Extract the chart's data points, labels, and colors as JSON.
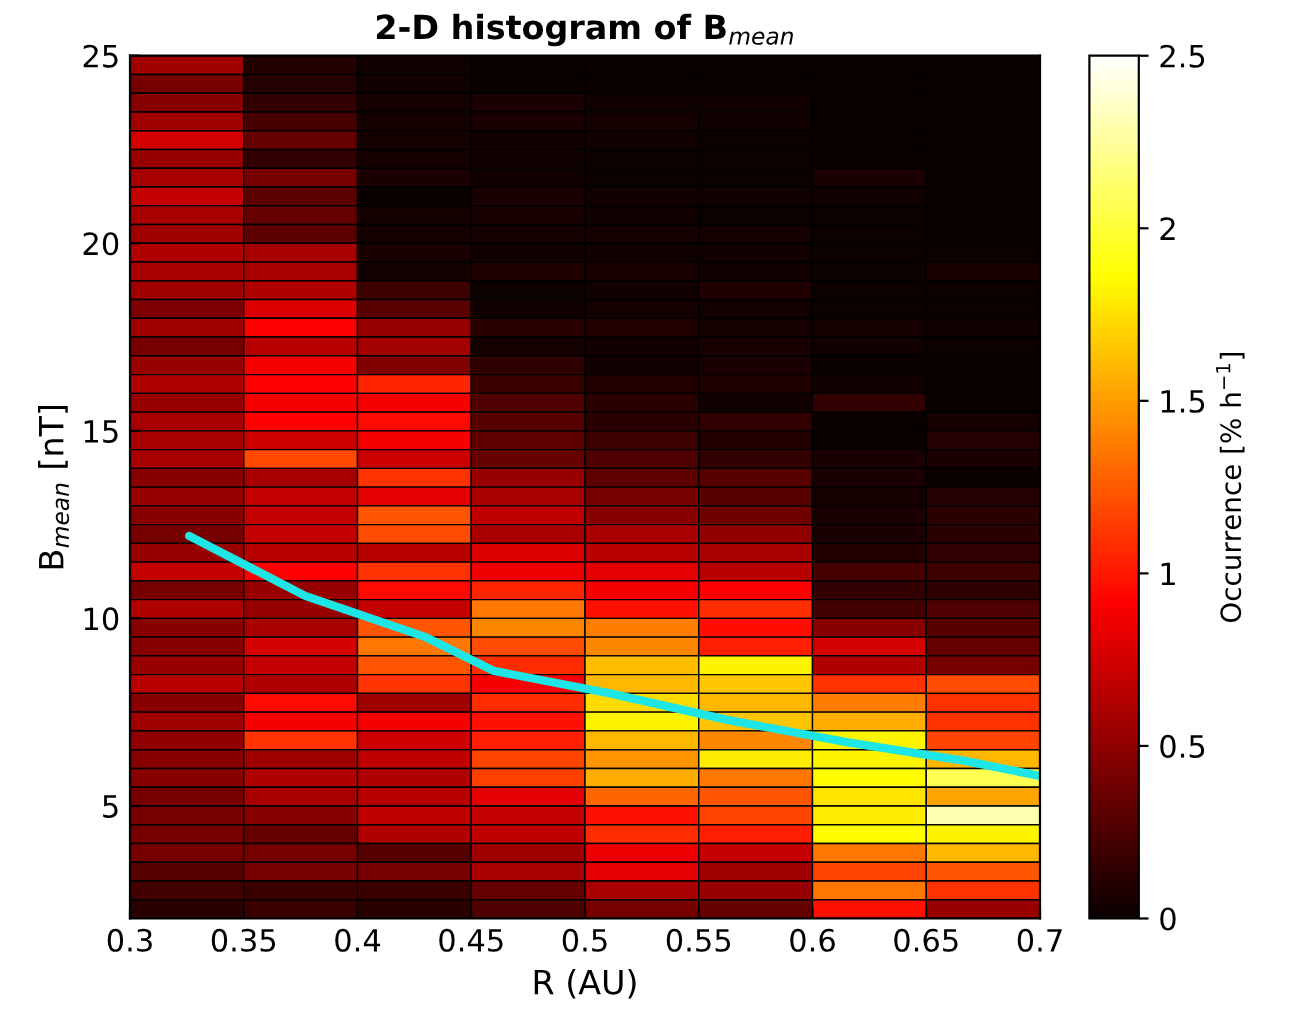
{
  "chart_data": {
    "type": "heatmap",
    "title": "2-D histogram of B$_{mean}$",
    "xlabel": "R (AU)",
    "ylabel": "B$_{mean}$ [nT]",
    "clabel": "Occurrence [% h$^{−1}$]",
    "cells": [
      [
        0.56,
        0.09,
        0.02,
        0,
        0,
        0,
        0,
        0
      ],
      [
        0.41,
        0.1,
        0.02,
        0,
        0,
        0,
        0,
        0
      ],
      [
        0.47,
        0.15,
        0.04,
        0.06,
        0.02,
        0.02,
        0,
        0
      ],
      [
        0.56,
        0.23,
        0.04,
        0.06,
        0.04,
        0.02,
        0,
        0
      ],
      [
        0.75,
        0.35,
        0.04,
        0.02,
        0.02,
        0.01,
        0,
        0
      ],
      [
        0.53,
        0.15,
        0.04,
        0.02,
        0.01,
        0.01,
        0,
        0
      ],
      [
        0.59,
        0.41,
        0.06,
        0.02,
        0.01,
        0.01,
        0.06,
        0
      ],
      [
        0.7,
        0.31,
        0,
        0.06,
        0.02,
        0.02,
        0.02,
        0
      ],
      [
        0.59,
        0.35,
        0.04,
        0.05,
        0.02,
        0.01,
        0.01,
        0
      ],
      [
        0.56,
        0.31,
        0.04,
        0.04,
        0.04,
        0.04,
        0.01,
        0
      ],
      [
        0.62,
        0.59,
        0.06,
        0.02,
        0.02,
        0.02,
        0.01,
        0.01
      ],
      [
        0.59,
        0.59,
        0.03,
        0.08,
        0.05,
        0.02,
        0.01,
        0.06
      ],
      [
        0.56,
        0.62,
        0.2,
        0.01,
        0.02,
        0.08,
        0.01,
        0.01
      ],
      [
        0.43,
        0.79,
        0.3,
        0.02,
        0.04,
        0.03,
        0.01,
        0.01
      ],
      [
        0.56,
        0.91,
        0.53,
        0.12,
        0.09,
        0.04,
        0.04,
        0.02
      ],
      [
        0.41,
        0.65,
        0.57,
        0.04,
        0.02,
        0.05,
        0.02,
        0.01
      ],
      [
        0.53,
        0.88,
        0.44,
        0.14,
        0.02,
        0.06,
        0,
        0
      ],
      [
        0.62,
        0.91,
        1.05,
        0.18,
        0.09,
        0.08,
        0.02,
        0
      ],
      [
        0.53,
        0.88,
        0.88,
        0.26,
        0.12,
        0.02,
        0.15,
        0
      ],
      [
        0.59,
        0.91,
        0.95,
        0.29,
        0.12,
        0.15,
        0,
        0.04
      ],
      [
        0.59,
        0.73,
        0.88,
        0.32,
        0.2,
        0.09,
        0,
        0.1
      ],
      [
        0.59,
        1.19,
        0.73,
        0.35,
        0.26,
        0.15,
        0.06,
        0.06
      ],
      [
        0.47,
        0.59,
        1.1,
        0.53,
        0.32,
        0.29,
        0.06,
        0
      ],
      [
        0.53,
        0.7,
        0.82,
        0.59,
        0.41,
        0.29,
        0.04,
        0.1
      ],
      [
        0.47,
        0.7,
        1.23,
        0.68,
        0.47,
        0.38,
        0.06,
        0.12
      ],
      [
        0.41,
        0.7,
        1.2,
        0.59,
        0.59,
        0.5,
        0.06,
        0.12
      ],
      [
        0.53,
        0.65,
        0.65,
        0.79,
        0.65,
        0.59,
        0.09,
        0.15
      ],
      [
        0.7,
        0.91,
        1.1,
        0.85,
        0.82,
        0.65,
        0.23,
        0.2
      ],
      [
        0.41,
        0.53,
        0.95,
        1.05,
        0.88,
        0.91,
        0.15,
        0.14
      ],
      [
        0.62,
        0.53,
        0.7,
        1.35,
        0.97,
        1.08,
        0.21,
        0.26
      ],
      [
        0.47,
        0.59,
        1.23,
        1.41,
        1.38,
        0.96,
        0.47,
        0.29
      ],
      [
        0.47,
        0.76,
        1.35,
        1.2,
        1.41,
        1.03,
        0.76,
        0.35
      ],
      [
        0.53,
        0.7,
        1.23,
        1.08,
        1.62,
        1.82,
        0.62,
        0.41
      ],
      [
        0.65,
        0.62,
        1.1,
        0.88,
        1.6,
        1.65,
        1.1,
        1.2
      ],
      [
        0.47,
        0.95,
        0.56,
        1.08,
        1.73,
        1.6,
        1.38,
        1.1
      ],
      [
        0.56,
        0.88,
        0.88,
        0.97,
        1.82,
        1.65,
        1.56,
        1.1
      ],
      [
        0.5,
        1.1,
        0.73,
        1.03,
        1.6,
        1.41,
        1.82,
        1.17
      ],
      [
        0.47,
        0.56,
        0.68,
        1.17,
        1.47,
        1.79,
        1.82,
        1.6
      ],
      [
        0.47,
        0.62,
        0.62,
        1.15,
        1.56,
        1.35,
        1.85,
        2.07
      ],
      [
        0.41,
        0.59,
        0.65,
        0.82,
        1.29,
        1.23,
        1.76,
        1.53
      ],
      [
        0.41,
        0.47,
        0.68,
        0.7,
        0.97,
        1.17,
        1.79,
        2.3
      ],
      [
        0.41,
        0.35,
        0.62,
        0.68,
        1.08,
        1.03,
        1.85,
        1.82
      ],
      [
        0.41,
        0.41,
        0.29,
        0.56,
        0.85,
        0.7,
        1.35,
        1.6
      ],
      [
        0.29,
        0.41,
        0.41,
        0.59,
        0.82,
        0.56,
        1.17,
        1.23
      ],
      [
        0.21,
        0.18,
        0.18,
        0.35,
        0.59,
        0.53,
        1.35,
        1.1
      ],
      [
        0.12,
        0.18,
        0.12,
        0.26,
        0.41,
        0.35,
        0.97,
        0.53
      ]
    ],
    "clim": [
      0,
      2.5
    ],
    "cticks": [
      0,
      0.5,
      1,
      1.5,
      2,
      2.5
    ],
    "xlim": [
      0.3,
      0.7
    ],
    "xticks": [
      0.3,
      0.35,
      0.4,
      0.45,
      0.5,
      0.55,
      0.6,
      0.65,
      0.7
    ],
    "ylim": [
      2,
      25
    ],
    "yticks": [
      5,
      10,
      15,
      20,
      25
    ],
    "series": [
      {
        "type": "line",
        "color": "#1ee6e6",
        "x": [
          0.326,
          0.377,
          0.43,
          0.46,
          0.511,
          0.562,
          0.615,
          0.667,
          0.7
        ],
        "values": [
          12.2,
          10.6,
          9.5,
          8.6,
          8.0,
          7.3,
          6.7,
          6.2,
          5.8
        ]
      }
    ],
    "grid": false
  }
}
